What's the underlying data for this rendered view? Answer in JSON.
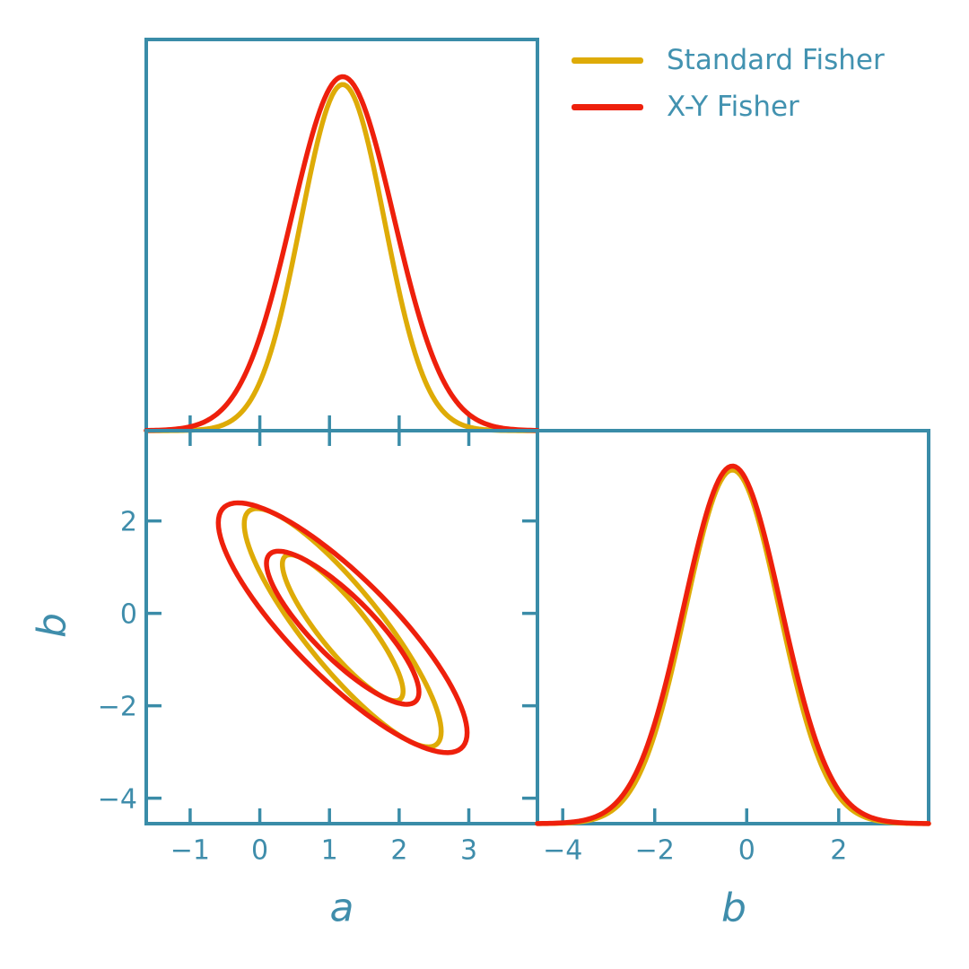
{
  "figure": {
    "background": "#ffffff"
  },
  "palette": {
    "axis": "#3a8ca8",
    "label_text": "#3f8dab",
    "legend_text": "#4292b0",
    "standard_fisher": "#deab07",
    "xy_fisher": "#ee200c"
  },
  "legend": {
    "items": [
      {
        "label": "Standard Fisher",
        "color": "#deab07"
      },
      {
        "label": "X-Y Fisher",
        "color": "#ee200c"
      }
    ]
  },
  "axes": {
    "a_label": "a",
    "b_label": "b"
  },
  "chart_data": {
    "type": "line",
    "subtype": "corner-plot-fisher-contours",
    "parameters": [
      "a",
      "b"
    ],
    "grid": "off",
    "legend_position": "top-right",
    "panels": [
      {
        "id": "marginal-a",
        "kind": "1d-gaussian-marginal",
        "position": "top-left",
        "x_param": "a",
        "xlim": [
          -1.63,
          3.985
        ],
        "xticks": [
          {
            "v": -1,
            "label": "−1"
          },
          {
            "v": 0,
            "label": "0"
          },
          {
            "v": 1,
            "label": "1"
          },
          {
            "v": 2,
            "label": "2"
          },
          {
            "v": 3,
            "label": "3"
          }
        ],
        "show_tick_labels": false,
        "series": [
          {
            "name": "Standard Fisher",
            "color": "#deab07",
            "shape": "gaussian",
            "mean": 1.19,
            "sigma": 0.6,
            "peak_height_frac": 0.885
          },
          {
            "name": "X-Y Fisher",
            "color": "#ee200c",
            "shape": "gaussian",
            "mean": 1.19,
            "sigma": 0.73,
            "peak_height_frac": 0.905
          }
        ]
      },
      {
        "id": "joint-ab",
        "kind": "2d-confidence-ellipses",
        "position": "bottom-left",
        "x_param": "a",
        "y_param": "b",
        "xlabel": "a",
        "ylabel": "b",
        "xlim": [
          -1.63,
          3.985
        ],
        "ylim": [
          -4.55,
          3.955
        ],
        "xticks": [
          {
            "v": -1,
            "label": "−1"
          },
          {
            "v": 0,
            "label": "0"
          },
          {
            "v": 1,
            "label": "1"
          },
          {
            "v": 2,
            "label": "2"
          },
          {
            "v": 3,
            "label": "3"
          }
        ],
        "yticks": [
          {
            "v": 2,
            "label": "2"
          },
          {
            "v": 0,
            "label": "0"
          },
          {
            "v": -2,
            "label": "−2"
          },
          {
            "v": -4,
            "label": "−4"
          }
        ],
        "contour_levels_sigma": [
          1.52,
          2.48
        ],
        "series": [
          {
            "name": "Standard Fisher",
            "color": "#deab07",
            "center": [
              1.19,
              -0.31
            ],
            "sigma_x": 0.57,
            "sigma_y": 1.04,
            "rho": -0.87
          },
          {
            "name": "X-Y Fisher",
            "color": "#ee200c",
            "center": [
              1.19,
              -0.31
            ],
            "sigma_x": 0.72,
            "sigma_y": 1.09,
            "rho": -0.84
          }
        ]
      },
      {
        "id": "marginal-b",
        "kind": "1d-gaussian-marginal",
        "position": "bottom-right",
        "x_param": "b",
        "xlabel": "b",
        "xlim": [
          -4.55,
          3.955
        ],
        "xticks": [
          {
            "v": -4,
            "label": "−4"
          },
          {
            "v": -2,
            "label": "−2"
          },
          {
            "v": 0,
            "label": "0"
          },
          {
            "v": 2,
            "label": "2"
          }
        ],
        "show_tick_labels": true,
        "series": [
          {
            "name": "Standard Fisher",
            "color": "#deab07",
            "shape": "gaussian",
            "mean": -0.31,
            "sigma": 1.02,
            "peak_height_frac": 0.9
          },
          {
            "name": "X-Y Fisher",
            "color": "#ee200c",
            "shape": "gaussian",
            "mean": -0.31,
            "sigma": 1.06,
            "peak_height_frac": 0.91
          }
        ]
      }
    ]
  }
}
